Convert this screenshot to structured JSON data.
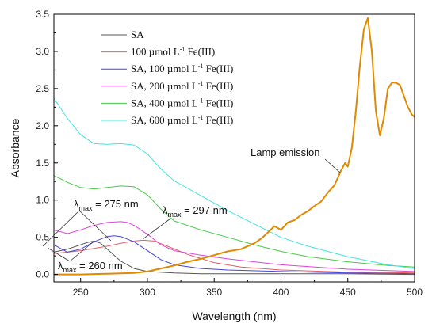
{
  "chart_data": {
    "type": "line",
    "title": "",
    "xlabel": "Wavelength (nm)",
    "ylabel": "Absorbance",
    "xlim": [
      230,
      500
    ],
    "ylim": [
      -0.1,
      3.5
    ],
    "xticks": [
      250,
      300,
      350,
      400,
      450,
      500
    ],
    "yticks": [
      0.0,
      0.5,
      1.0,
      1.5,
      2.0,
      2.5,
      3.0,
      3.5
    ],
    "ytick_labels": [
      "0.0",
      "0.5",
      "1.0",
      "1.5",
      "2.0",
      "2.5",
      "3.0",
      "3.5"
    ],
    "grid": false,
    "legend_position": "top-left",
    "series": [
      {
        "name": "SA",
        "name_parts": [
          "SA",
          "",
          ""
        ],
        "color": "#555555",
        "x": [
          230,
          240,
          250,
          255,
          260,
          265,
          270,
          280,
          290,
          300,
          320,
          340,
          360,
          400,
          450,
          500
        ],
        "y": [
          0.3,
          0.34,
          0.4,
          0.43,
          0.45,
          0.42,
          0.34,
          0.18,
          0.08,
          0.04,
          0.02,
          0.01,
          0.01,
          0.01,
          0.01,
          0.0
        ]
      },
      {
        "name": "100 µmol L-1 Fe(III)",
        "name_parts": [
          "100 µmol L",
          "-1",
          " Fe(III)"
        ],
        "color": "#e06060",
        "x": [
          230,
          250,
          270,
          280,
          290,
          297,
          305,
          315,
          330,
          350,
          370,
          400,
          450,
          500
        ],
        "y": [
          0.28,
          0.32,
          0.38,
          0.42,
          0.45,
          0.46,
          0.45,
          0.38,
          0.27,
          0.16,
          0.1,
          0.06,
          0.03,
          0.02
        ]
      },
      {
        "name": "SA, 100 µmol L-1 Fe(III)",
        "name_parts": [
          "SA, 100 µmol L",
          "-1",
          " Fe(III)"
        ],
        "color": "#4444dd",
        "x": [
          230,
          235,
          240,
          250,
          260,
          270,
          275,
          280,
          290,
          300,
          310,
          320,
          340,
          360,
          400,
          450,
          500
        ],
        "y": [
          0.4,
          0.35,
          0.3,
          0.34,
          0.44,
          0.51,
          0.52,
          0.51,
          0.44,
          0.32,
          0.2,
          0.13,
          0.08,
          0.06,
          0.04,
          0.02,
          0.01
        ]
      },
      {
        "name": "SA, 200 µmol L-1 Fe(III)",
        "name_parts": [
          "SA, 200 µmol L",
          "-1",
          " Fe(III)"
        ],
        "color": "#dd44dd",
        "x": [
          230,
          240,
          250,
          260,
          270,
          280,
          285,
          290,
          300,
          310,
          320,
          340,
          360,
          380,
          400,
          450,
          500
        ],
        "y": [
          0.6,
          0.55,
          0.6,
          0.66,
          0.7,
          0.71,
          0.7,
          0.66,
          0.54,
          0.4,
          0.32,
          0.26,
          0.21,
          0.17,
          0.13,
          0.07,
          0.04
        ]
      },
      {
        "name": "SA, 400 µmol L-1 Fe(III)",
        "name_parts": [
          "SA, 400 µmol L",
          "-1",
          " Fe(III)"
        ],
        "color": "#44cc44",
        "x": [
          230,
          240,
          250,
          260,
          270,
          280,
          290,
          300,
          310,
          320,
          340,
          360,
          380,
          400,
          420,
          450,
          480,
          500
        ],
        "y": [
          1.33,
          1.24,
          1.17,
          1.15,
          1.17,
          1.19,
          1.18,
          1.07,
          0.88,
          0.72,
          0.6,
          0.5,
          0.4,
          0.31,
          0.24,
          0.17,
          0.12,
          0.1
        ]
      },
      {
        "name": "SA, 600 µmol L-1 Fe(III)",
        "name_parts": [
          "SA, 600 µmol L",
          "-1",
          " Fe(III)"
        ],
        "color": "#44e4e4",
        "x": [
          230,
          240,
          250,
          260,
          270,
          280,
          290,
          300,
          310,
          320,
          340,
          360,
          380,
          400,
          420,
          450,
          480,
          500
        ],
        "y": [
          2.37,
          2.1,
          1.88,
          1.76,
          1.75,
          1.76,
          1.74,
          1.62,
          1.42,
          1.26,
          1.06,
          0.86,
          0.68,
          0.5,
          0.38,
          0.24,
          0.13,
          0.08
        ]
      },
      {
        "name": "Lamp emission",
        "color": "#e08a00",
        "x": [
          230,
          250,
          270,
          290,
          300,
          310,
          320,
          330,
          340,
          350,
          360,
          370,
          380,
          385,
          390,
          395,
          400,
          405,
          410,
          415,
          420,
          425,
          430,
          435,
          440,
          445,
          448,
          450,
          453,
          456,
          459,
          462,
          465,
          468,
          471,
          474,
          477,
          480,
          483,
          486,
          489,
          492,
          495,
          498,
          500
        ],
        "y": [
          0.0,
          0.0,
          0.01,
          0.02,
          0.04,
          0.08,
          0.12,
          0.17,
          0.21,
          0.26,
          0.31,
          0.34,
          0.42,
          0.48,
          0.56,
          0.65,
          0.6,
          0.7,
          0.73,
          0.8,
          0.85,
          0.92,
          0.98,
          1.1,
          1.2,
          1.4,
          1.5,
          1.45,
          1.7,
          2.2,
          2.8,
          3.3,
          3.45,
          3.0,
          2.2,
          1.87,
          2.1,
          2.5,
          2.58,
          2.58,
          2.55,
          2.4,
          2.25,
          2.15,
          2.12
        ]
      }
    ],
    "annotations": [
      {
        "text": "λ",
        "subscript": "max",
        "value": " = 275 nm",
        "x": 275,
        "y": 0.52
      },
      {
        "text": "λ",
        "subscript": "max",
        "value": " = 297 nm",
        "x": 297,
        "y": 0.46
      },
      {
        "text": "λ",
        "subscript": "max",
        "value": " = 260 nm",
        "x": 260,
        "y": 0.45
      },
      {
        "text": "Lamp emission",
        "x": 448,
        "y": 1.45
      }
    ]
  }
}
